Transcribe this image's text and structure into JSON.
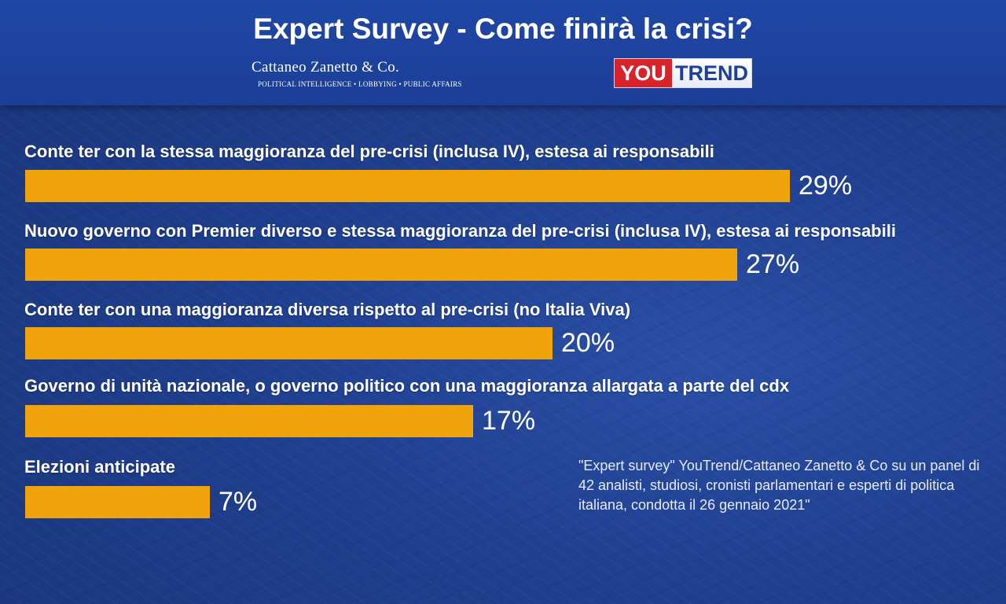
{
  "header": {
    "title": "Expert Survey - Come finirà la crisi?",
    "logo_left_name": "Cattaneo Zanetto & Co.",
    "logo_left_tagline": "POLITICAL INTELLIGENCE • LOBBYING • PUBLIC AFFAIRS",
    "logo_right_you": "YOU",
    "logo_right_trend": "TREND"
  },
  "colors": {
    "bar": "#f0a30a",
    "background": "#1f3f8f",
    "header": "#1f47a6",
    "brand_red": "#d8232a"
  },
  "chart_data": {
    "type": "bar",
    "orientation": "horizontal",
    "categories": [
      "Conte ter con la stessa maggioranza del pre-crisi (inclusa IV), estesa ai responsabili",
      "Nuovo governo con Premier diverso e stessa maggioranza del pre-crisi (inclusa IV), estesa ai responsabili",
      "Conte ter con una maggioranza diversa rispetto al pre-crisi (no Italia Viva)",
      "Governo di unità nazionale, o governo politico con una maggioranza allargata a parte del cdx",
      "Elezioni anticipate"
    ],
    "values": [
      29,
      27,
      20,
      17,
      7
    ],
    "value_labels": [
      "29%",
      "27%",
      "20%",
      "17%",
      "7%"
    ],
    "unit": "%"
  },
  "note": "\"Expert survey\" YouTrend/Cattaneo Zanetto & Co su un panel di 42 analisti, studiosi, cronisti parlamentari e esperti di politica italiana, condotta il 26 gennaio 2021\""
}
